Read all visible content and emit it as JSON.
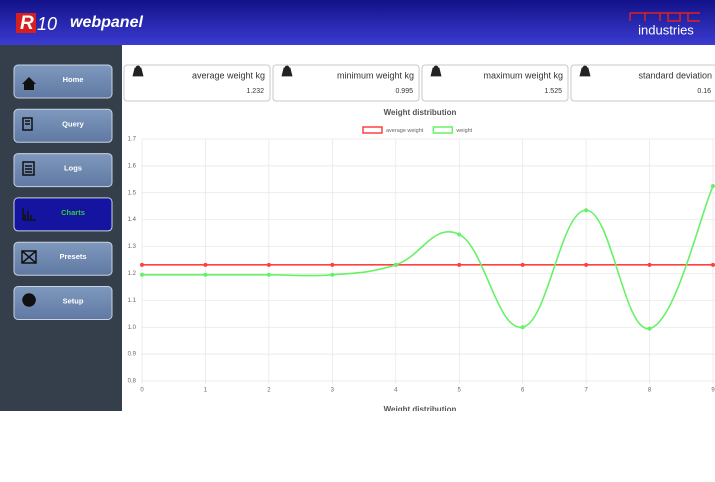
{
  "header": {
    "logo_mark": "R",
    "logo_num": "10",
    "logo_text": "webpanel",
    "brand": "industries"
  },
  "nav": [
    {
      "label": "Home"
    },
    {
      "label": "Query"
    },
    {
      "label": "Logs"
    },
    {
      "label": "Charts",
      "active": true
    },
    {
      "label": "Presets"
    },
    {
      "label": "Setup"
    }
  ],
  "stats": [
    {
      "label": "average weight kg",
      "value": "1.232"
    },
    {
      "label": "minimum weight kg",
      "value": "0.995"
    },
    {
      "label": "maximum weight kg",
      "value": "1.525"
    },
    {
      "label": "standard deviation",
      "value": "0.16"
    }
  ],
  "chart_data": {
    "type": "line",
    "title": "Weight distribution",
    "x": [
      0,
      1,
      2,
      3,
      4,
      5,
      6,
      7,
      8,
      9
    ],
    "xlim": [
      0,
      9
    ],
    "xticks": [
      0,
      1,
      2,
      3,
      4,
      5,
      6,
      7,
      8,
      9
    ],
    "ylim": [
      0.8,
      1.7
    ],
    "yticks": [
      0.8,
      0.9,
      {
        "value": 1,
        "label": "1.0"
      },
      1.1,
      1.2,
      1.3,
      1.4,
      1.5,
      1.6,
      1.7
    ],
    "grid": true,
    "legend": "top",
    "series": [
      {
        "name": "average weight",
        "color": "#ff4040",
        "values": [
          1.232,
          1.232,
          1.232,
          1.232,
          1.232,
          1.232,
          1.232,
          1.232,
          1.232,
          1.232
        ]
      },
      {
        "name": "weight",
        "color": "#66f266",
        "values": [
          1.195,
          1.195,
          1.195,
          1.195,
          1.232,
          1.345,
          1.0,
          1.435,
          0.995,
          1.525
        ]
      }
    ]
  },
  "next_chart_title": "Weight distribution"
}
